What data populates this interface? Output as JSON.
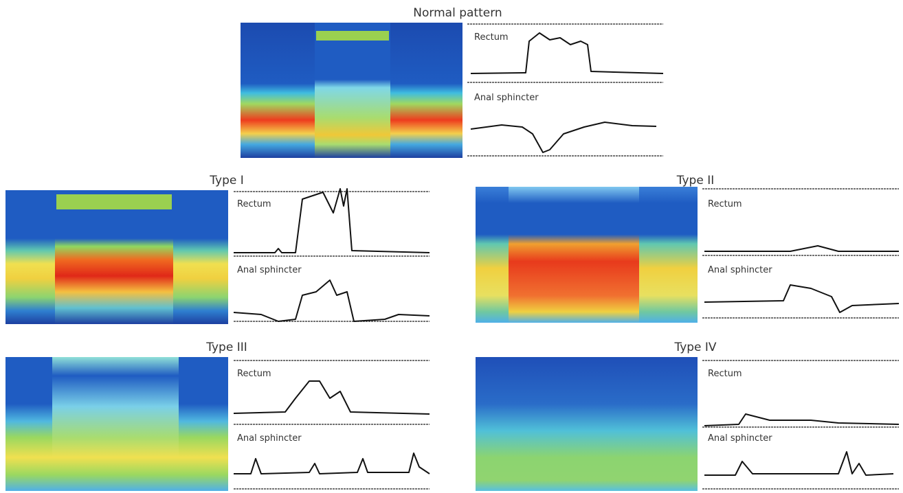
{
  "panels": [
    {
      "title": "Normal pattern",
      "traces": [
        "Rectum",
        "Anal sphincter"
      ]
    },
    {
      "title": "Type I",
      "traces": [
        "Rectum",
        "Anal sphincter"
      ]
    },
    {
      "title": "Type II",
      "traces": [
        "Rectum",
        "Anal sphincter"
      ]
    },
    {
      "title": "Type III",
      "traces": [
        "Rectum",
        "Anal sphincter"
      ]
    },
    {
      "title": "Type IV",
      "traces": [
        "Rectum",
        "Anal sphincter"
      ]
    }
  ]
}
